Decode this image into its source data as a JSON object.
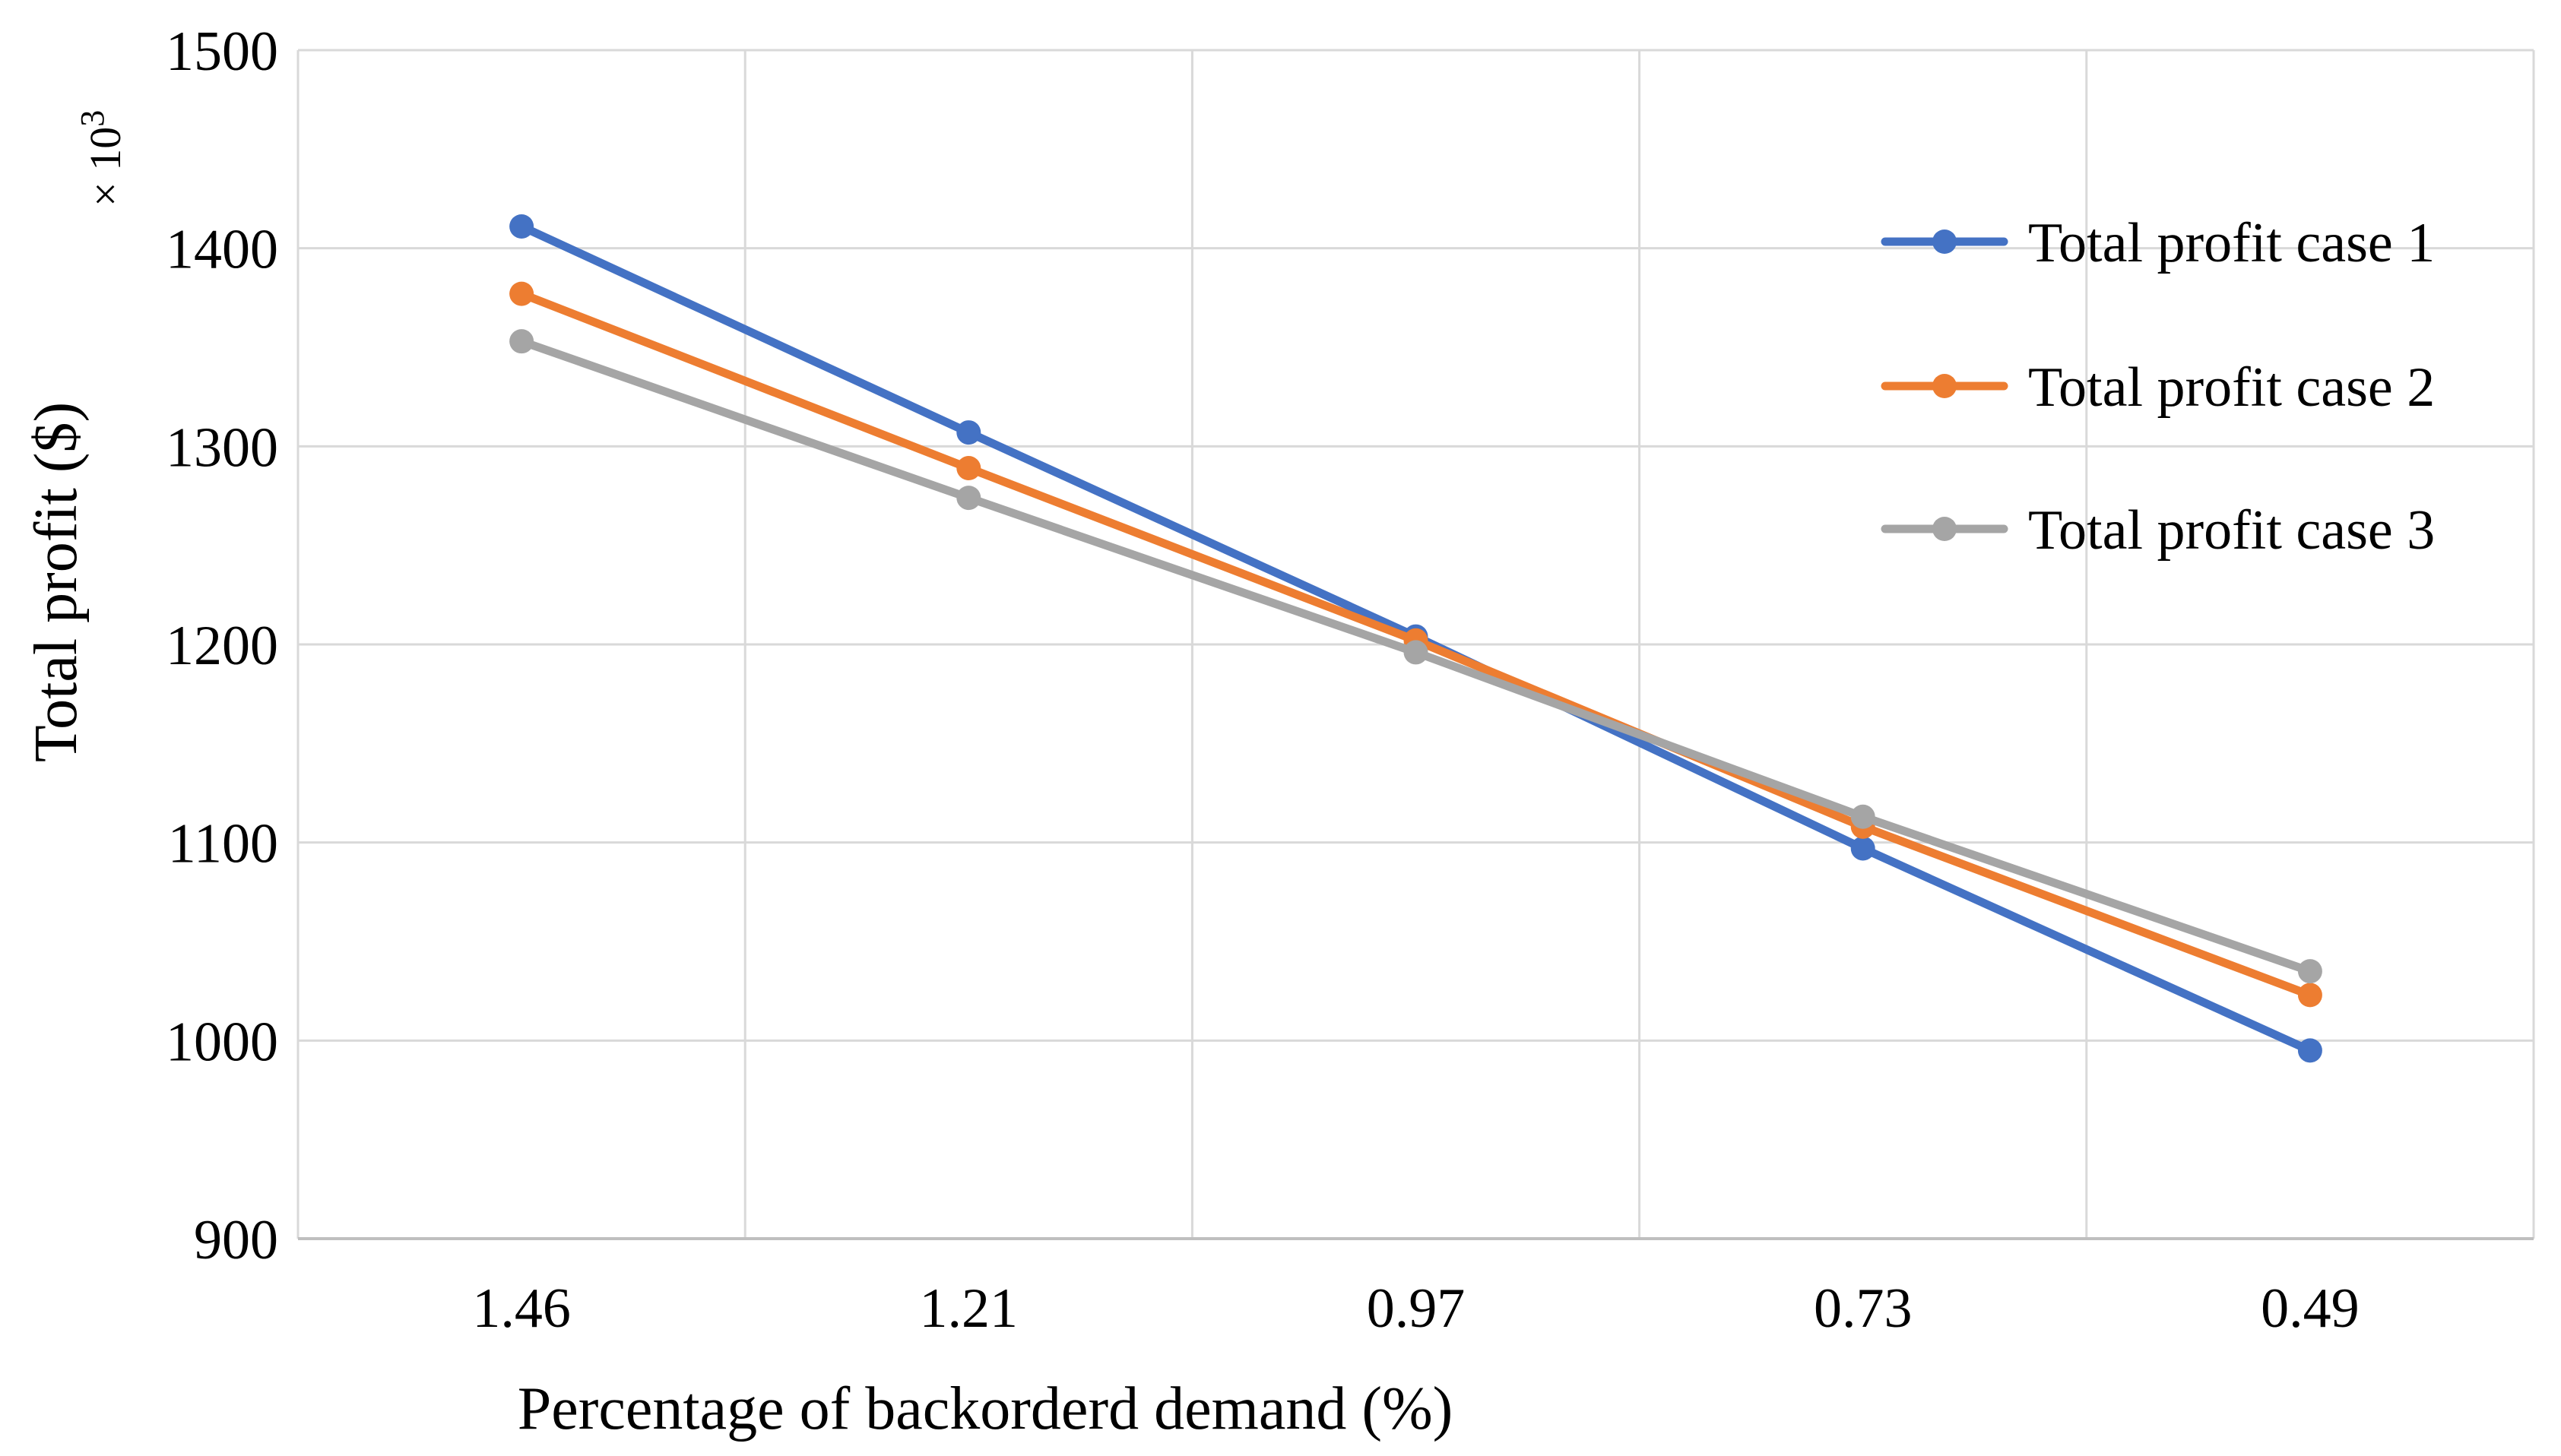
{
  "chart_data": {
    "type": "line",
    "title": "",
    "xlabel": "Percentage of backorderd demand (%)",
    "ylabel": "Total profit ($)",
    "y_multiplier": {
      "prefix": "× 10",
      "exponent": "3"
    },
    "categories": [
      "1.46",
      "1.21",
      "0.97",
      "0.73",
      "0.49"
    ],
    "ylim": [
      900,
      1500
    ],
    "yticks": [
      900,
      1000,
      1100,
      1200,
      1300,
      1400,
      1500
    ],
    "grid": true,
    "legend_position": "right",
    "series": [
      {
        "name": "Total profit case 1",
        "color": "#4472C4",
        "values": [
          1411,
          1307,
          1204,
          1097,
          995
        ]
      },
      {
        "name": "Total profit case 2",
        "color": "#ED7D31",
        "values": [
          1377,
          1289,
          1202,
          1108,
          1023
        ]
      },
      {
        "name": "Total profit case 3",
        "color": "#A5A5A5",
        "values": [
          1353,
          1274,
          1196,
          1113,
          1035
        ]
      }
    ],
    "gridline_color": "#D9D9D9",
    "axis_color": "#BFBFBF"
  }
}
